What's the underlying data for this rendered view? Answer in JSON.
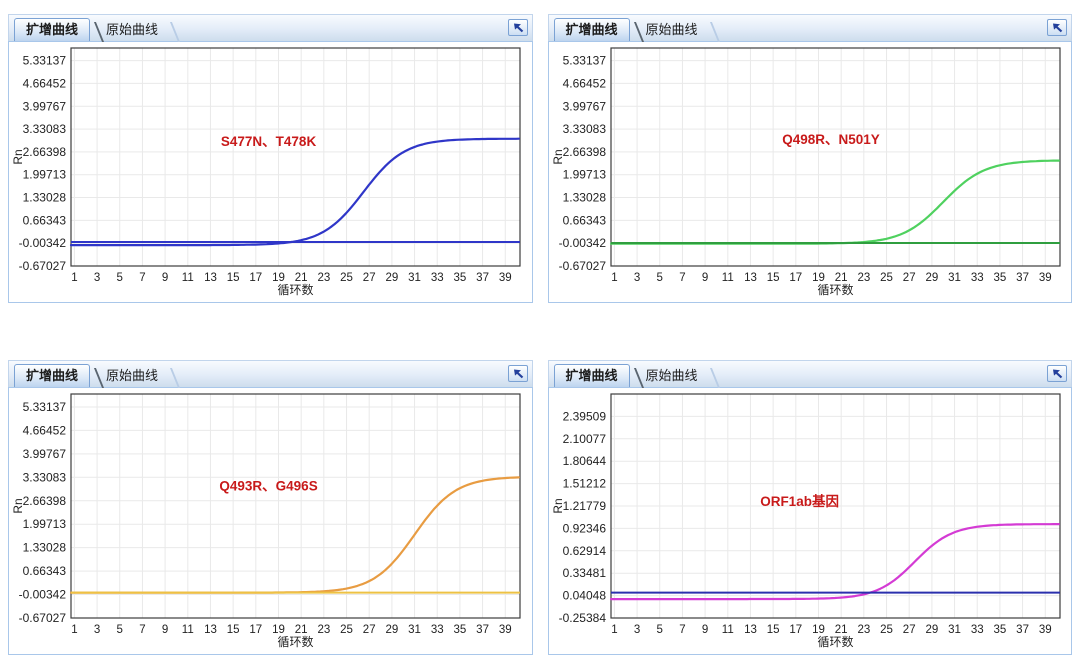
{
  "panel_common": {
    "tabs": [
      {
        "label": "扩增曲线",
        "active": true
      },
      {
        "label": "原始曲线",
        "active": false
      }
    ],
    "corner_icon": "arrow-top-left",
    "xlabel": "循环数",
    "ylabel": "Rn",
    "x_ticks": [
      1,
      3,
      5,
      7,
      9,
      11,
      13,
      15,
      17,
      19,
      21,
      23,
      25,
      27,
      29,
      31,
      33,
      35,
      37,
      39
    ],
    "annotation_color": "#c81a1a",
    "grid_color": "#e9e9e9",
    "plot_border_color": "#3c3c3c"
  },
  "panels": [
    {
      "tabs": [
        {
          "label": "扩增曲线"
        },
        {
          "label": "原始曲线"
        }
      ],
      "annotation": "S477N、T478K"
    },
    {
      "tabs": [
        {
          "label": "扩增曲线"
        },
        {
          "label": "原始曲线"
        }
      ],
      "annotation": "Q498R、N501Y"
    },
    {
      "tabs": [
        {
          "label": "扩增曲线"
        },
        {
          "label": "原始曲线"
        }
      ],
      "annotation": "Q493R、G496S"
    },
    {
      "tabs": [
        {
          "label": "扩增曲线"
        },
        {
          "label": "原始曲线"
        }
      ],
      "annotation": "ORF1ab基因"
    }
  ],
  "chart_data": [
    {
      "type": "line",
      "annotation": "S477N、T478K",
      "xlabel": "循环数",
      "ylabel": "Rn",
      "x_ticks": [
        1,
        3,
        5,
        7,
        9,
        11,
        13,
        15,
        17,
        19,
        21,
        23,
        25,
        27,
        29,
        31,
        33,
        35,
        37,
        39
      ],
      "y_ticks": [
        5.33137,
        4.66452,
        3.99767,
        3.33083,
        2.66398,
        1.99713,
        1.33028,
        0.66343,
        -0.00342,
        -0.67027
      ],
      "xlim": [
        0.7,
        40.3
      ],
      "ylim": [
        -0.67027,
        5.7
      ],
      "grid": true,
      "series": [
        {
          "name": "amplification-curve",
          "color": "#2f36c8",
          "shape": "sigmoid",
          "baseline": -0.06,
          "plateau": 3.05,
          "midpoint_cycle": 26.5,
          "slope": 0.55,
          "sampled_points": [
            [
              1,
              -0.06
            ],
            [
              5,
              -0.06
            ],
            [
              9,
              -0.06
            ],
            [
              13,
              -0.06
            ],
            [
              17,
              -0.05
            ],
            [
              19,
              -0.01
            ],
            [
              21,
              0.09
            ],
            [
              23,
              0.34
            ],
            [
              25,
              0.9
            ],
            [
              27,
              1.71
            ],
            [
              29,
              2.42
            ],
            [
              31,
              2.81
            ],
            [
              33,
              2.97
            ],
            [
              35,
              3.02
            ],
            [
              37,
              3.04
            ],
            [
              39,
              3.05
            ]
          ]
        },
        {
          "name": "threshold-line",
          "color": "#2f36c8",
          "shape": "flat",
          "value": 0.03
        }
      ]
    },
    {
      "type": "line",
      "annotation": "Q498R、N501Y",
      "xlabel": "循环数",
      "ylabel": "Rn",
      "x_ticks": [
        1,
        3,
        5,
        7,
        9,
        11,
        13,
        15,
        17,
        19,
        21,
        23,
        25,
        27,
        29,
        31,
        33,
        35,
        37,
        39
      ],
      "y_ticks": [
        5.33137,
        4.66452,
        3.99767,
        3.33083,
        2.66398,
        1.99713,
        1.33028,
        0.66343,
        -0.00342,
        -0.67027
      ],
      "xlim": [
        0.7,
        40.3
      ],
      "ylim": [
        -0.67027,
        5.7
      ],
      "grid": true,
      "series": [
        {
          "name": "amplification-curve",
          "color": "#4fd15f",
          "shape": "sigmoid",
          "baseline": -0.02,
          "plateau": 2.42,
          "midpoint_cycle": 30,
          "slope": 0.55,
          "sampled_points": [
            [
              1,
              -0.02
            ],
            [
              9,
              -0.02
            ],
            [
              17,
              -0.02
            ],
            [
              21,
              -0.01
            ],
            [
              23,
              0.03
            ],
            [
              25,
              0.13
            ],
            [
              27,
              0.37
            ],
            [
              29,
              0.87
            ],
            [
              31,
              1.53
            ],
            [
              33,
              2.03
            ],
            [
              35,
              2.27
            ],
            [
              37,
              2.37
            ],
            [
              39,
              2.4
            ]
          ]
        },
        {
          "name": "threshold-line",
          "color": "#2f9e3f",
          "shape": "flat",
          "value": 0.0
        }
      ]
    },
    {
      "type": "line",
      "annotation": "Q493R、G496S",
      "xlabel": "循环数",
      "ylabel": "Rn",
      "x_ticks": [
        1,
        3,
        5,
        7,
        9,
        11,
        13,
        15,
        17,
        19,
        21,
        23,
        25,
        27,
        29,
        31,
        33,
        35,
        37,
        39
      ],
      "y_ticks": [
        5.33137,
        4.66452,
        3.99767,
        3.33083,
        2.66398,
        1.99713,
        1.33028,
        0.66343,
        -0.00342,
        -0.67027
      ],
      "xlim": [
        0.7,
        40.3
      ],
      "ylim": [
        -0.67027,
        5.7
      ],
      "grid": true,
      "series": [
        {
          "name": "amplification-curve",
          "color": "#e89c42",
          "shape": "sigmoid",
          "baseline": 0.05,
          "plateau": 3.35,
          "midpoint_cycle": 31,
          "slope": 0.55,
          "sampled_points": [
            [
              1,
              0.05
            ],
            [
              9,
              0.05
            ],
            [
              17,
              0.05
            ],
            [
              23,
              0.07
            ],
            [
              25,
              0.15
            ],
            [
              27,
              0.45
            ],
            [
              29,
              0.95
            ],
            [
              31,
              1.7
            ],
            [
              33,
              2.46
            ],
            [
              35,
              2.96
            ],
            [
              37,
              3.19
            ],
            [
              39,
              3.28
            ]
          ]
        },
        {
          "name": "threshold-line",
          "color": "#edc244",
          "shape": "flat",
          "value": 0.05
        }
      ]
    },
    {
      "type": "line",
      "annotation": "ORF1ab基因",
      "xlabel": "循环数",
      "ylabel": "Rn",
      "x_ticks": [
        1,
        3,
        5,
        7,
        9,
        11,
        13,
        15,
        17,
        19,
        21,
        23,
        25,
        27,
        29,
        31,
        33,
        35,
        37,
        39
      ],
      "y_ticks": [
        2.39509,
        2.10077,
        1.80644,
        1.51212,
        1.21779,
        0.92346,
        0.62914,
        0.33481,
        0.04048,
        -0.25384
      ],
      "xlim": [
        0.7,
        40.3
      ],
      "ylim": [
        -0.25384,
        2.68942
      ],
      "grid": true,
      "series": [
        {
          "name": "amplification-curve",
          "color": "#d43bd4",
          "shape": "sigmoid",
          "baseline": -0.005,
          "plateau": 0.98,
          "midpoint_cycle": 27.5,
          "slope": 0.6,
          "sampled_points": [
            [
              1,
              -0.005
            ],
            [
              9,
              -0.005
            ],
            [
              17,
              -0.005
            ],
            [
              21,
              0.01
            ],
            [
              23,
              0.06
            ],
            [
              25,
              0.17
            ],
            [
              27,
              0.41
            ],
            [
              29,
              0.7
            ],
            [
              31,
              0.87
            ],
            [
              33,
              0.94
            ],
            [
              35,
              0.96
            ],
            [
              37,
              0.97
            ],
            [
              39,
              0.98
            ]
          ]
        },
        {
          "name": "threshold-line",
          "color": "#2b30ad",
          "shape": "flat",
          "value": 0.08
        }
      ]
    }
  ]
}
